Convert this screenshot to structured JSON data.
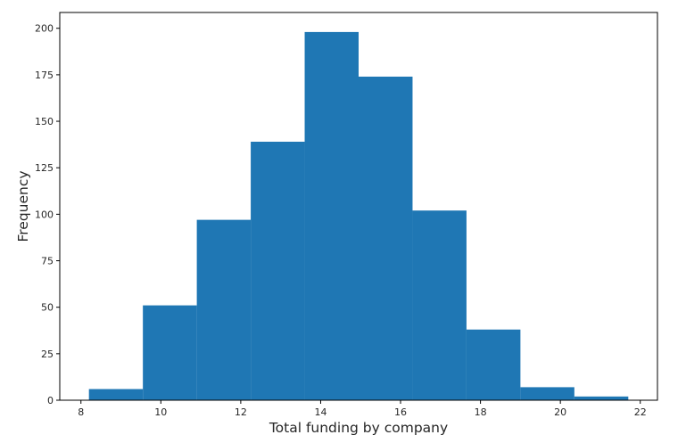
{
  "chart_data": {
    "type": "histogram",
    "xlabel": "Total funding by company",
    "ylabel": "Frequency",
    "xlim": [
      7.47,
      22.43
    ],
    "ylim": [
      0,
      208.5
    ],
    "x_ticks": [
      8,
      10,
      12,
      14,
      16,
      18,
      20,
      22
    ],
    "y_ticks": [
      0,
      25,
      50,
      75,
      100,
      125,
      150,
      175,
      200
    ],
    "bin_edges": [
      8.2,
      9.55,
      10.9,
      12.25,
      13.6,
      14.95,
      16.3,
      17.65,
      19.0,
      20.35,
      21.7
    ],
    "values": [
      6,
      51,
      97,
      139,
      198,
      174,
      102,
      38,
      7,
      2
    ],
    "bar_color": "#1f77b4",
    "grid": false
  }
}
